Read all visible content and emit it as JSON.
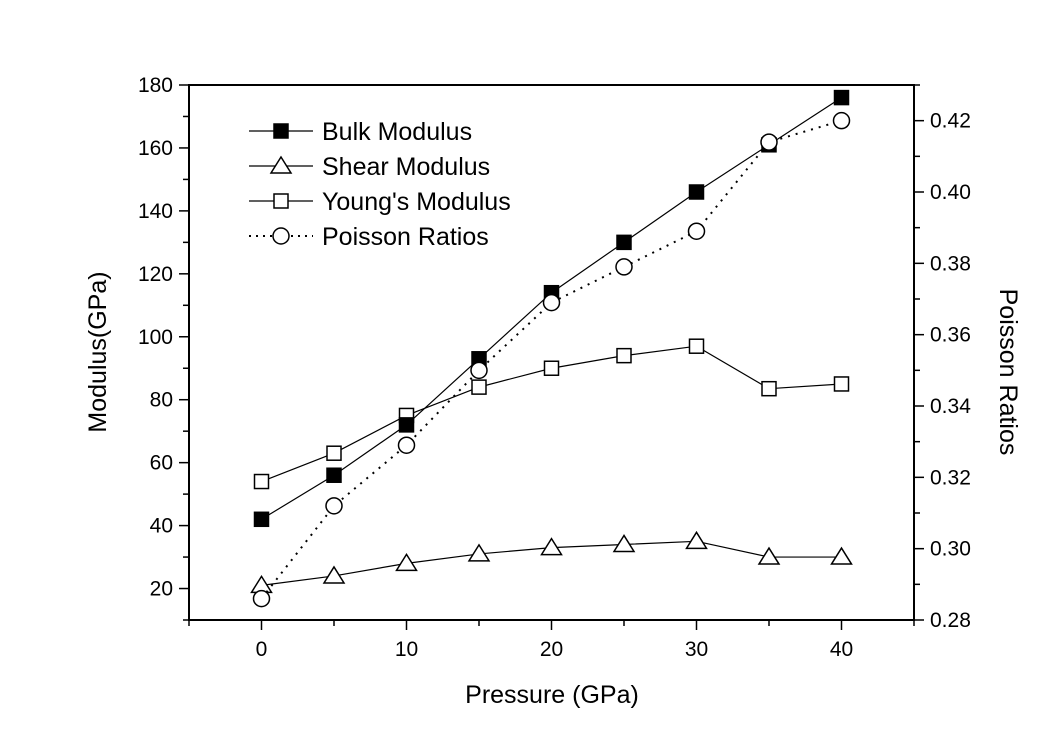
{
  "chart_data": {
    "type": "line",
    "title": "",
    "xlabel": "Pressure (GPa)",
    "ylabel": "Modulus(GPa)",
    "y2label": "Poisson Ratios",
    "xlim": [
      -5,
      45
    ],
    "ylim": [
      10,
      180
    ],
    "y2lim": [
      0.28,
      0.43
    ],
    "grid": false,
    "legend_position": "top-left",
    "x_ticks": [
      0,
      10,
      20,
      30,
      40
    ],
    "x_tick_labels": [
      "0",
      "10",
      "20",
      "30",
      "40"
    ],
    "y_ticks": [
      20,
      40,
      60,
      80,
      100,
      120,
      140,
      160,
      180
    ],
    "y_tick_labels": [
      "20",
      "40",
      "60",
      "80",
      "100",
      "120",
      "140",
      "160",
      "180"
    ],
    "y2_ticks": [
      0.28,
      0.3,
      0.32,
      0.34,
      0.36,
      0.38,
      0.4,
      0.42
    ],
    "y2_tick_labels": [
      "0.28",
      "0.30",
      "0.32",
      "0.34",
      "0.36",
      "0.38",
      "0.40",
      "0.42"
    ],
    "x": [
      0,
      5,
      10,
      15,
      20,
      25,
      30,
      35,
      40
    ],
    "series": [
      {
        "name": "Bulk Modulus",
        "axis": "left",
        "marker": "filled-square",
        "line": "solid",
        "values": [
          42,
          56,
          72,
          93,
          114,
          130,
          146,
          161,
          176
        ]
      },
      {
        "name": "Shear Modulus",
        "axis": "left",
        "marker": "open-triangle",
        "line": "solid",
        "values": [
          21,
          24,
          28,
          31,
          33,
          34,
          35,
          30,
          30
        ]
      },
      {
        "name": "Young's Modulus",
        "axis": "left",
        "marker": "open-square",
        "line": "solid",
        "values": [
          54,
          63,
          75,
          84,
          90,
          94,
          97,
          83.5,
          85
        ]
      },
      {
        "name": "Poisson Ratios",
        "axis": "right",
        "marker": "open-circle",
        "line": "dotted",
        "values": [
          0.286,
          0.312,
          0.329,
          0.35,
          0.369,
          0.379,
          0.389,
          0.414,
          0.42
        ]
      }
    ]
  }
}
